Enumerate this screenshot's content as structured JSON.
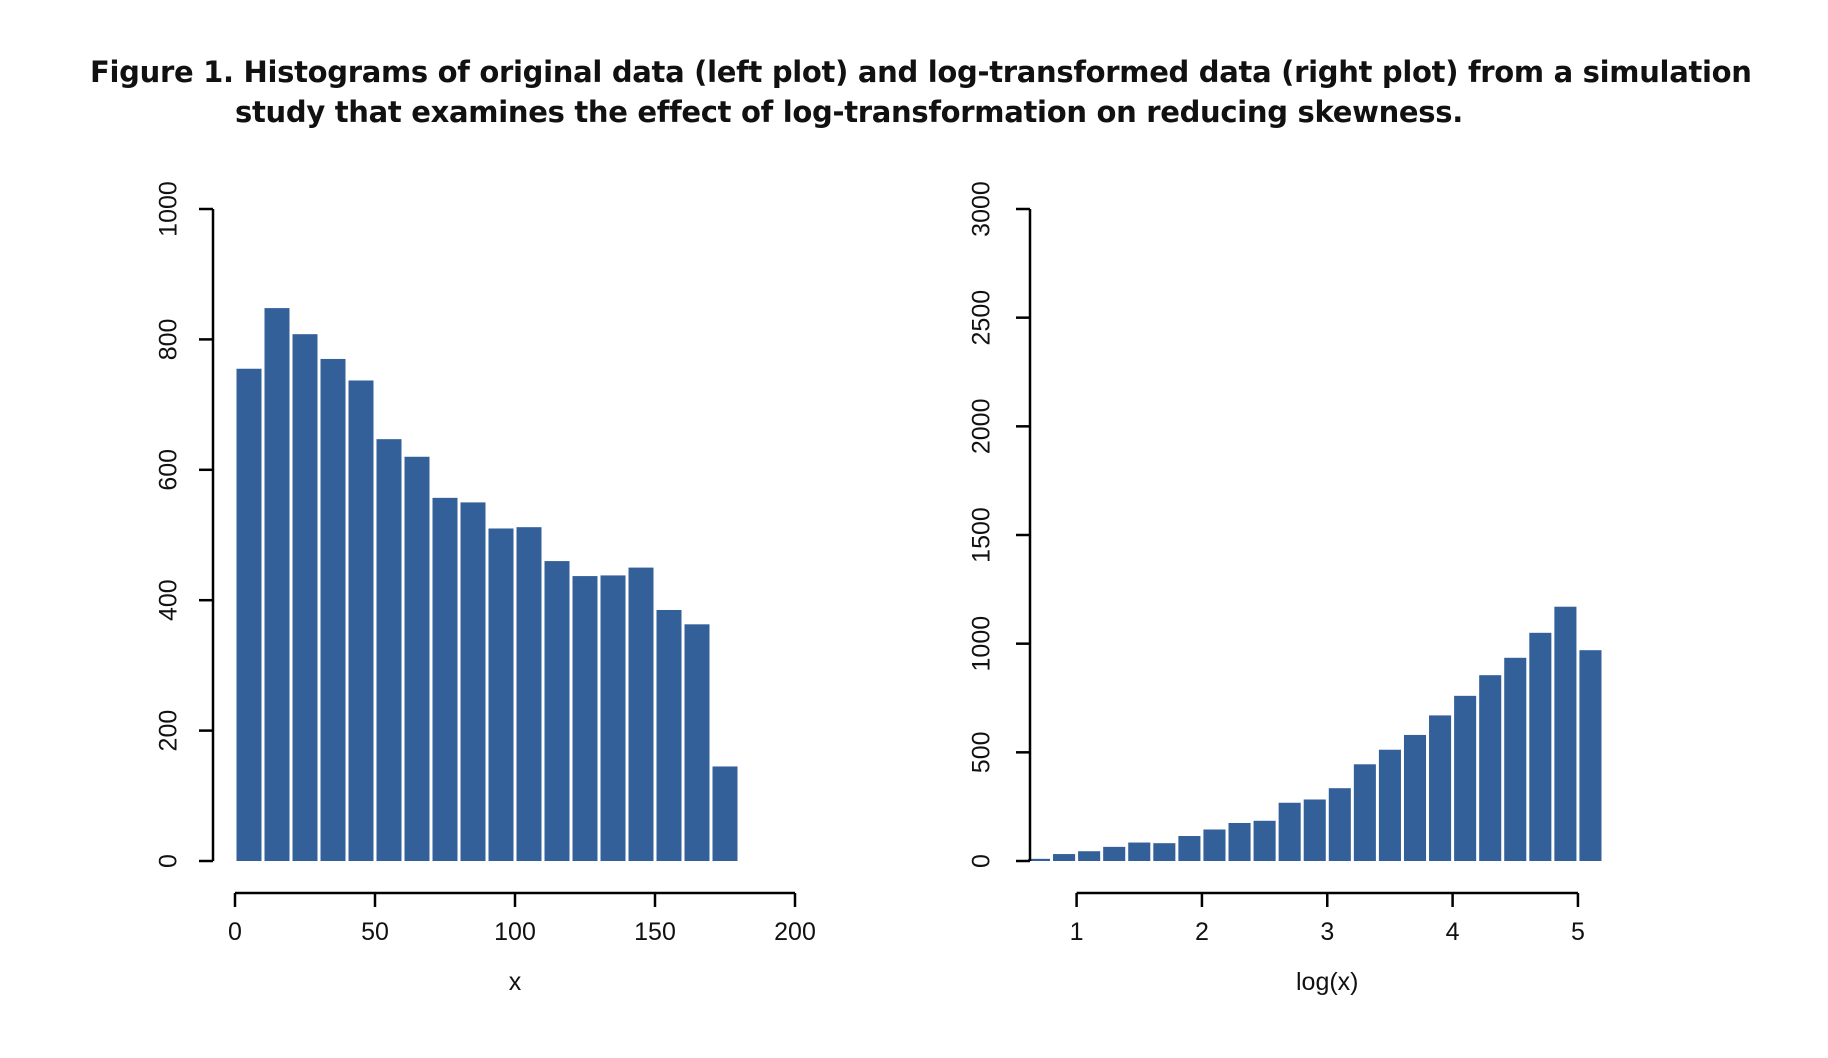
{
  "caption": {
    "line1": "Figure 1. Histograms of original data (left plot) and log-transformed data (right plot) from a simulation",
    "line2": "study that examines the effect of log-transformation on reducing skewness."
  },
  "colors": {
    "bar": "#34609a",
    "axis": "#000000"
  },
  "chart_data": [
    {
      "type": "bar",
      "title": "",
      "xlabel": "x",
      "ylabel": "",
      "xlim": [
        0,
        200
      ],
      "ylim": [
        0,
        1000
      ],
      "xticks": [
        "0",
        "50",
        "100",
        "150",
        "200"
      ],
      "yticks": [
        "0",
        "200",
        "400",
        "600",
        "800",
        "1000"
      ],
      "bin_width": 10,
      "bins": [
        0,
        10,
        20,
        30,
        40,
        50,
        60,
        70,
        80,
        90,
        100,
        110,
        120,
        130,
        140,
        150,
        160,
        170
      ],
      "values": [
        755,
        848,
        808,
        770,
        737,
        647,
        620,
        557,
        550,
        510,
        512,
        460,
        437,
        438,
        450,
        385,
        363,
        145
      ]
    },
    {
      "type": "bar",
      "title": "",
      "xlabel": "log(x)",
      "ylabel": "",
      "xlim": [
        0.7,
        5.2
      ],
      "ylim": [
        0,
        3000
      ],
      "xticks": [
        "1",
        "2",
        "3",
        "4",
        "5"
      ],
      "yticks": [
        "0",
        "500",
        "1000",
        "1500",
        "2000",
        "2500",
        "3000"
      ],
      "bin_width": 0.2,
      "bins": [
        0.6,
        0.8,
        1.0,
        1.2,
        1.4,
        1.6,
        1.8,
        2.0,
        2.2,
        2.4,
        2.6,
        2.8,
        3.0,
        3.2,
        3.4,
        3.6,
        3.8,
        4.0,
        4.2,
        4.4,
        4.6,
        4.8,
        5.0
      ],
      "values": [
        10,
        32,
        45,
        65,
        85,
        82,
        115,
        145,
        175,
        185,
        268,
        283,
        335,
        445,
        512,
        580,
        670,
        760,
        855,
        935,
        1050,
        1170,
        970
      ]
    }
  ]
}
